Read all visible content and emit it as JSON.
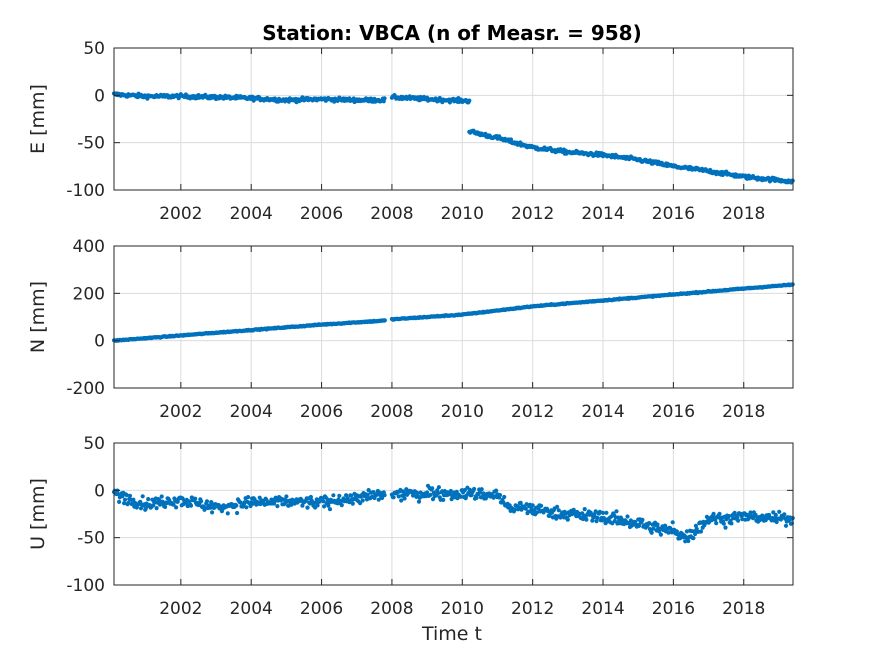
{
  "title": "Station: VBCA (n of Measr. = 958)",
  "xlabel": "Time t",
  "colors": {
    "marker": "#0072BD",
    "grid": "#dcdcdc",
    "axes": "#262626"
  },
  "chart_data": [
    {
      "type": "scatter",
      "ylabel": "E [mm]",
      "xlim": [
        2000.1,
        2019.4
      ],
      "ylim": [
        -100,
        50
      ],
      "yticks": [
        50,
        0,
        -50,
        -100
      ],
      "xticks": [
        2002,
        2004,
        2006,
        2008,
        2010,
        2012,
        2014,
        2016,
        2018
      ],
      "grid": true,
      "series": [
        {
          "approx_points": [
            [
              2000.1,
              1
            ],
            [
              2001.0,
              -1
            ],
            [
              2002.0,
              -1
            ],
            [
              2003.0,
              -2
            ],
            [
              2004.0,
              -3
            ],
            [
              2005.0,
              -5
            ],
            [
              2006.0,
              -4
            ],
            [
              2007.0,
              -5
            ],
            [
              2007.8,
              -5
            ],
            [
              2008.0,
              -2
            ],
            [
              2009.0,
              -4
            ],
            [
              2010.2,
              -6
            ],
            [
              2010.2,
              -38
            ],
            [
              2011.0,
              -45
            ],
            [
              2012.0,
              -55
            ],
            [
              2013.0,
              -60
            ],
            [
              2014.0,
              -63
            ],
            [
              2015.0,
              -68
            ],
            [
              2016.0,
              -75
            ],
            [
              2017.0,
              -80
            ],
            [
              2018.0,
              -86
            ],
            [
              2019.4,
              -91
            ]
          ]
        }
      ]
    },
    {
      "type": "scatter",
      "ylabel": "N [mm]",
      "xlim": [
        2000.1,
        2019.4
      ],
      "ylim": [
        -200,
        400
      ],
      "yticks": [
        400,
        200,
        0,
        -200
      ],
      "xticks": [
        2002,
        2004,
        2006,
        2008,
        2010,
        2012,
        2014,
        2016,
        2018
      ],
      "grid": true,
      "series": [
        {
          "approx_points": [
            [
              2000.1,
              0
            ],
            [
              2002.0,
              22
            ],
            [
              2004.0,
              45
            ],
            [
              2006.0,
              68
            ],
            [
              2007.8,
              85
            ],
            [
              2008.0,
              90
            ],
            [
              2010.0,
              110
            ],
            [
              2012.0,
              145
            ],
            [
              2014.0,
              170
            ],
            [
              2016.0,
              195
            ],
            [
              2018.0,
              220
            ],
            [
              2019.4,
              237
            ]
          ]
        }
      ]
    },
    {
      "type": "scatter",
      "ylabel": "U [mm]",
      "xlim": [
        2000.1,
        2019.4
      ],
      "ylim": [
        -100,
        50
      ],
      "yticks": [
        50,
        0,
        -50,
        -100
      ],
      "xticks": [
        2002,
        2004,
        2006,
        2008,
        2010,
        2012,
        2014,
        2016,
        2018
      ],
      "grid": true,
      "series": [
        {
          "approx_points": [
            [
              2000.1,
              -3
            ],
            [
              2001.0,
              -15
            ],
            [
              2002.0,
              -10
            ],
            [
              2003.0,
              -18
            ],
            [
              2004.0,
              -13
            ],
            [
              2005.0,
              -12
            ],
            [
              2006.0,
              -13
            ],
            [
              2007.0,
              -8
            ],
            [
              2007.8,
              -5
            ],
            [
              2008.0,
              -5
            ],
            [
              2009.0,
              -3
            ],
            [
              2010.0,
              -3
            ],
            [
              2011.0,
              -5
            ],
            [
              2011.3,
              -18
            ],
            [
              2012.0,
              -20
            ],
            [
              2013.0,
              -25
            ],
            [
              2014.0,
              -28
            ],
            [
              2015.0,
              -35
            ],
            [
              2015.5,
              -40
            ],
            [
              2016.0,
              -43
            ],
            [
              2016.4,
              -50
            ],
            [
              2017.0,
              -30
            ],
            [
              2018.0,
              -28
            ],
            [
              2019.4,
              -30
            ]
          ]
        }
      ]
    }
  ]
}
